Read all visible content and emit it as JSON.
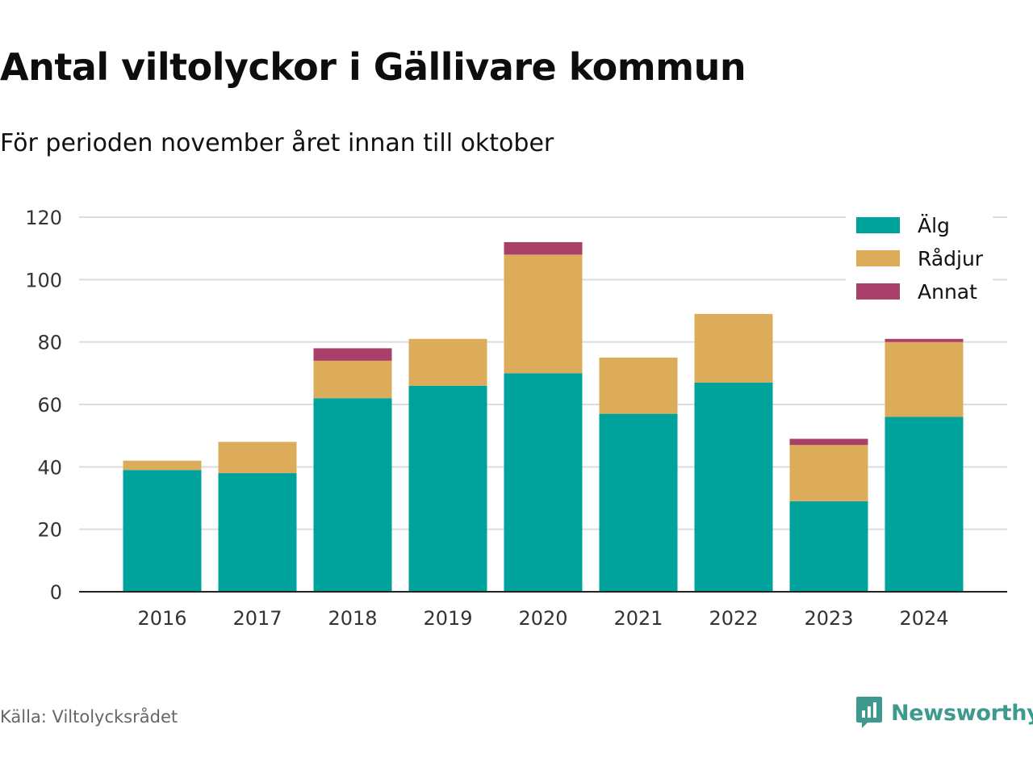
{
  "title": "Antal viltolyckor i Gällivare kommun",
  "subtitle": "För perioden november året innan till oktober",
  "source": "Källa: Viltolycksrådet",
  "brand": {
    "name": "Newsworthy",
    "icon": "newsworthy-logo-icon",
    "color": "#3e9a8e"
  },
  "chart_data": {
    "type": "bar",
    "stacked": true,
    "categories": [
      "2016",
      "2017",
      "2018",
      "2019",
      "2020",
      "2021",
      "2022",
      "2023",
      "2024"
    ],
    "series": [
      {
        "name": "Älg",
        "color": "#00a39b",
        "values": [
          39,
          38,
          62,
          66,
          70,
          57,
          67,
          29,
          56
        ]
      },
      {
        "name": "Rådjur",
        "color": "#dcac5a",
        "values": [
          3,
          10,
          12,
          15,
          38,
          18,
          22,
          18,
          24
        ]
      },
      {
        "name": "Annat",
        "color": "#a8406a",
        "values": [
          0,
          0,
          4,
          0,
          4,
          0,
          0,
          2,
          1
        ]
      }
    ],
    "ylim": [
      0,
      120
    ],
    "yticks": [
      "0",
      "20",
      "40",
      "60",
      "80",
      "100",
      "120"
    ],
    "grid": true,
    "legend": "top-right"
  }
}
